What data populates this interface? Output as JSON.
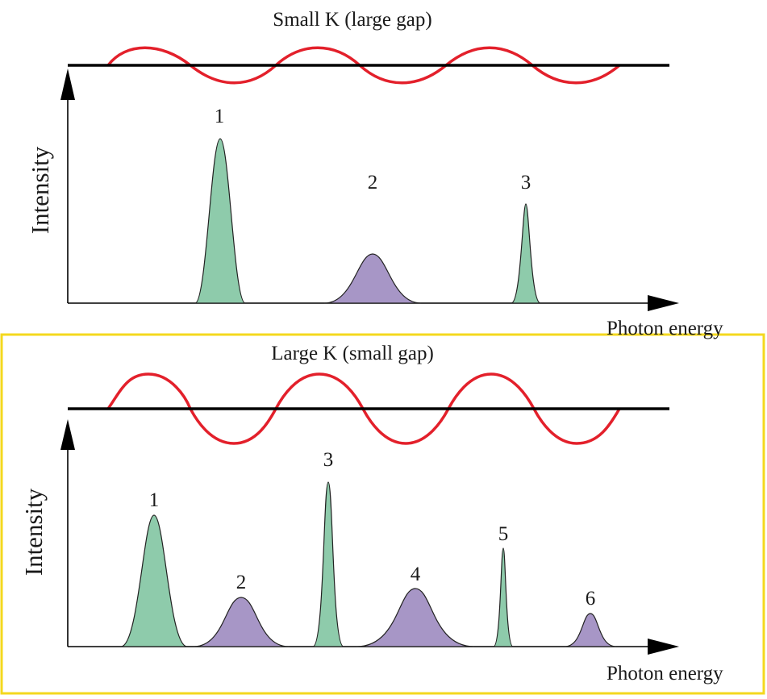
{
  "colors": {
    "green": "#8ecbab",
    "purple": "#a796c6",
    "red": "#e3202b",
    "axis": "#000000",
    "highlight": "#f4d81e"
  },
  "panels": [
    {
      "title": "Small K (large gap)",
      "ylabel": "Intensity",
      "xlabel": "Photon energy",
      "wave_amplitude": "small",
      "peaks": [
        {
          "label": "1",
          "color": "green",
          "relative_height": 1.0
        },
        {
          "label": "2",
          "color": "purple",
          "relative_height": 0.3
        },
        {
          "label": "3",
          "color": "green",
          "relative_height": 0.6
        }
      ]
    },
    {
      "title": "Large K (small gap)",
      "ylabel": "Intensity",
      "xlabel": "Photon energy",
      "wave_amplitude": "large",
      "peaks": [
        {
          "label": "1",
          "color": "green",
          "relative_height": 0.8
        },
        {
          "label": "2",
          "color": "purple",
          "relative_height": 0.3
        },
        {
          "label": "3",
          "color": "green",
          "relative_height": 1.0
        },
        {
          "label": "4",
          "color": "purple",
          "relative_height": 0.35
        },
        {
          "label": "5",
          "color": "green",
          "relative_height": 0.6
        },
        {
          "label": "6",
          "color": "purple",
          "relative_height": 0.2
        }
      ]
    }
  ]
}
